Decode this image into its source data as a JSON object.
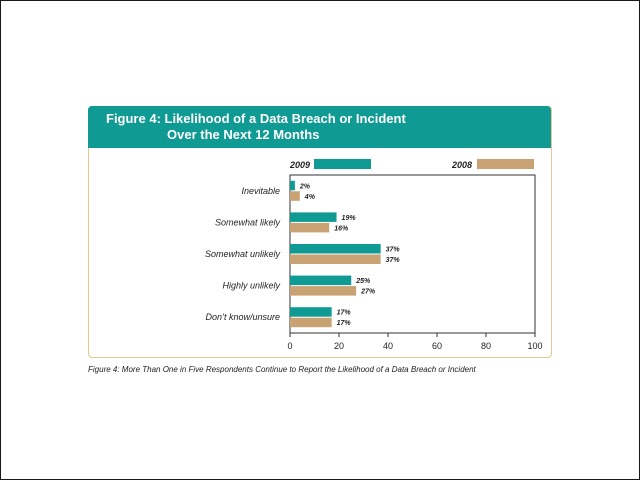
{
  "chart_data": {
    "type": "bar",
    "orientation": "horizontal",
    "title_line1": "Figure 4:  Likelihood of a Data Breach or Incident",
    "title_line2": "Over the Next 12 Months",
    "categories": [
      "Inevitable",
      "Somewhat likely",
      "Somewhat unlikely",
      "Highly unlikely",
      "Don’t know/unsure"
    ],
    "series": [
      {
        "name": "2009",
        "color": "#0f9a94",
        "values": [
          2,
          19,
          37,
          25,
          17
        ],
        "labels": [
          "2%",
          "19%",
          "37%",
          "25%",
          "17%"
        ]
      },
      {
        "name": "2008",
        "color": "#c9a274",
        "values": [
          4,
          16,
          37,
          27,
          17
        ],
        "labels": [
          "4%",
          "16%",
          "37%",
          "27%",
          "17%"
        ]
      }
    ],
    "xlim": [
      0,
      100
    ],
    "xticks": [
      "0",
      "20",
      "40",
      "60",
      "80",
      "100"
    ],
    "legend_position": "top",
    "grid": false
  },
  "caption": "Figure 4: More Than One in Five Respondents Continue to Report the Likelihood of a Data Breach or Incident"
}
